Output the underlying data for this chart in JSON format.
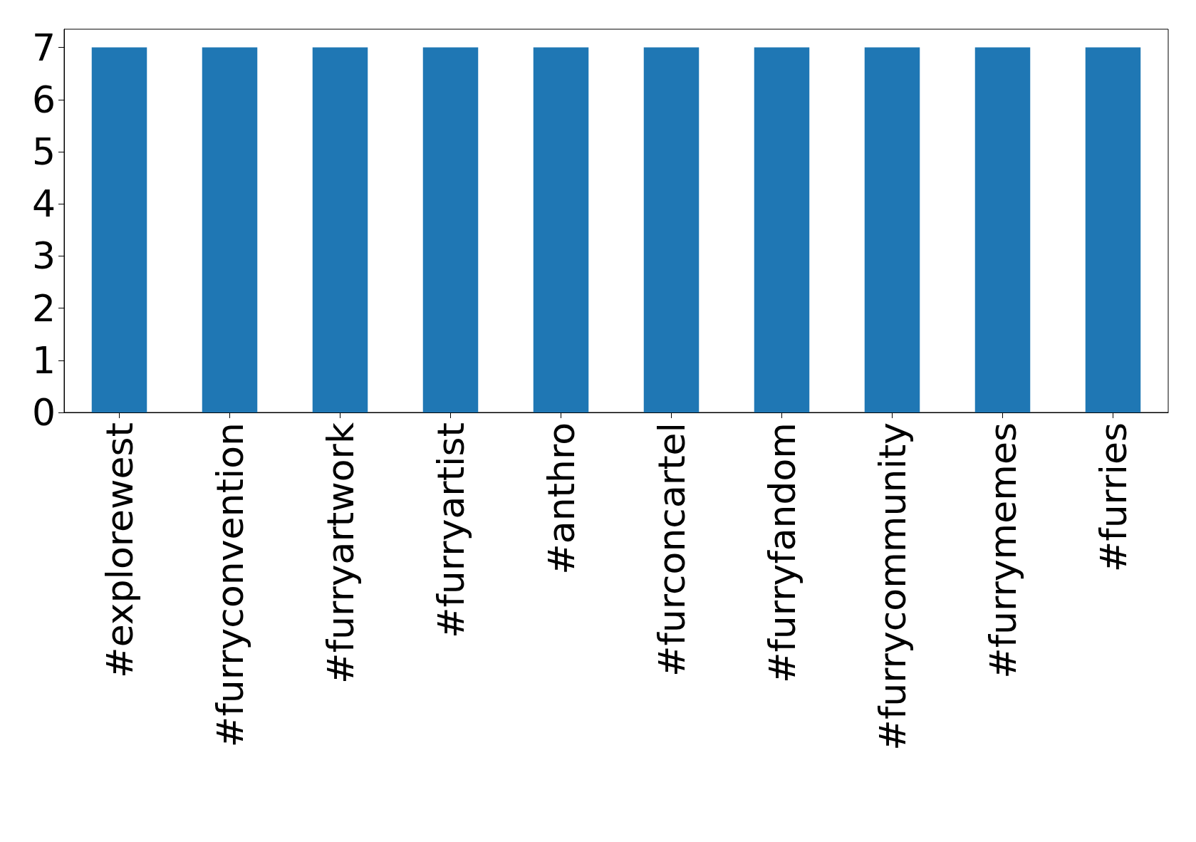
{
  "chart_data": {
    "type": "bar",
    "categories": [
      "#explorewest",
      "#furryconvention",
      "#furryartwork",
      "#furryartist",
      "#anthro",
      "#furconcartel",
      "#furryfandom",
      "#furrycommunity",
      "#furrymemes",
      "#furries"
    ],
    "values": [
      7,
      7,
      7,
      7,
      7,
      7,
      7,
      7,
      7,
      7
    ],
    "color": "#1f77b4",
    "ylim": [
      0,
      7.35
    ],
    "yticks": [
      0,
      1,
      2,
      3,
      4,
      5,
      6,
      7
    ],
    "grid": false
  }
}
